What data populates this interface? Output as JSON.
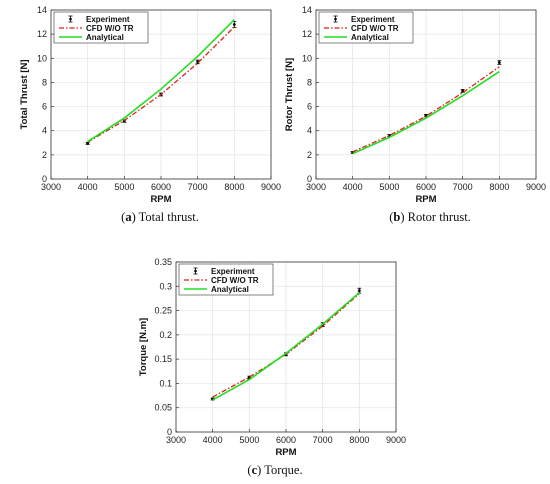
{
  "chart_data": [
    {
      "type": "line",
      "ylabel": "Total Thrust [N]",
      "xlabel": "RPM",
      "xlim": [
        3000,
        9000
      ],
      "ylim": [
        0,
        14
      ],
      "xticks": [
        3000,
        4000,
        5000,
        6000,
        7000,
        8000,
        9000
      ],
      "yticks": [
        0,
        2,
        4,
        6,
        8,
        10,
        12,
        14
      ],
      "grid": true,
      "legend_position": "top-left",
      "caption_label": "(a)",
      "caption_text": "Total thrust.",
      "series": [
        {
          "name": "Experiment",
          "kind": "errorbar",
          "color": "#000000",
          "x": [
            4000,
            5000,
            6000,
            7000,
            8000
          ],
          "values": [
            2.95,
            4.8,
            7.0,
            9.7,
            12.8
          ],
          "err": [
            0.08,
            0.1,
            0.12,
            0.15,
            0.25
          ]
        },
        {
          "name": "CFD W/O TR",
          "kind": "dashdot",
          "color": "#e0201b",
          "x": [
            4000,
            5000,
            6000,
            7000,
            8000
          ],
          "values": [
            3.05,
            4.85,
            7.0,
            9.6,
            12.6
          ]
        },
        {
          "name": "Analytical",
          "kind": "solid",
          "color": "#22dd22",
          "x": [
            4000,
            5000,
            6000,
            7000,
            8000
          ],
          "values": [
            3.1,
            5.05,
            7.45,
            10.15,
            13.2
          ]
        }
      ]
    },
    {
      "type": "line",
      "ylabel": "Rotor Thrust [N]",
      "xlabel": "RPM",
      "xlim": [
        3000,
        9000
      ],
      "ylim": [
        0,
        14
      ],
      "xticks": [
        3000,
        4000,
        5000,
        6000,
        7000,
        8000,
        9000
      ],
      "yticks": [
        0,
        2,
        4,
        6,
        8,
        10,
        12,
        14
      ],
      "grid": true,
      "legend_position": "top-left",
      "caption_label": "(b)",
      "caption_text": "Rotor thrust.",
      "series": [
        {
          "name": "Experiment",
          "kind": "errorbar",
          "color": "#000000",
          "x": [
            4000,
            5000,
            6000,
            7000,
            8000
          ],
          "values": [
            2.2,
            3.6,
            5.25,
            7.3,
            9.65
          ],
          "err": [
            0.07,
            0.08,
            0.1,
            0.12,
            0.15
          ]
        },
        {
          "name": "CFD W/O TR",
          "kind": "dashdot",
          "color": "#e0201b",
          "x": [
            4000,
            5000,
            6000,
            7000,
            8000
          ],
          "values": [
            2.25,
            3.6,
            5.2,
            7.15,
            9.3
          ]
        },
        {
          "name": "Analytical",
          "kind": "solid",
          "color": "#22dd22",
          "x": [
            4000,
            5000,
            6000,
            7000,
            8000
          ],
          "values": [
            2.1,
            3.45,
            5.05,
            6.9,
            8.9
          ]
        }
      ]
    },
    {
      "type": "line",
      "ylabel": "Torque [N.m]",
      "xlabel": "RPM",
      "xlim": [
        3000,
        9000
      ],
      "ylim": [
        0,
        0.35
      ],
      "xticks": [
        3000,
        4000,
        5000,
        6000,
        7000,
        8000,
        9000
      ],
      "yticks": [
        0,
        0.05,
        0.1,
        0.15,
        0.2,
        0.25,
        0.3,
        0.35
      ],
      "ytick_labels": [
        "0",
        "0.05",
        "0.1",
        "0.15",
        "0.2",
        "0.25",
        "0.3",
        "0.35"
      ],
      "grid": true,
      "legend_position": "top-left",
      "caption_label": "(c)",
      "caption_text": "Torque.",
      "series": [
        {
          "name": "Experiment",
          "kind": "errorbar",
          "color": "#000000",
          "x": [
            4000,
            5000,
            6000,
            7000,
            8000
          ],
          "values": [
            0.068,
            0.112,
            0.16,
            0.221,
            0.291
          ],
          "err": [
            0.002,
            0.003,
            0.003,
            0.004,
            0.005
          ]
        },
        {
          "name": "CFD W/O TR",
          "kind": "dashdot",
          "color": "#e0201b",
          "x": [
            4000,
            5000,
            6000,
            7000,
            8000
          ],
          "values": [
            0.072,
            0.113,
            0.16,
            0.218,
            0.285
          ]
        },
        {
          "name": "Analytical",
          "kind": "solid",
          "color": "#22dd22",
          "x": [
            4000,
            5000,
            6000,
            7000,
            8000
          ],
          "values": [
            0.066,
            0.108,
            0.162,
            0.222,
            0.287
          ]
        }
      ]
    }
  ]
}
